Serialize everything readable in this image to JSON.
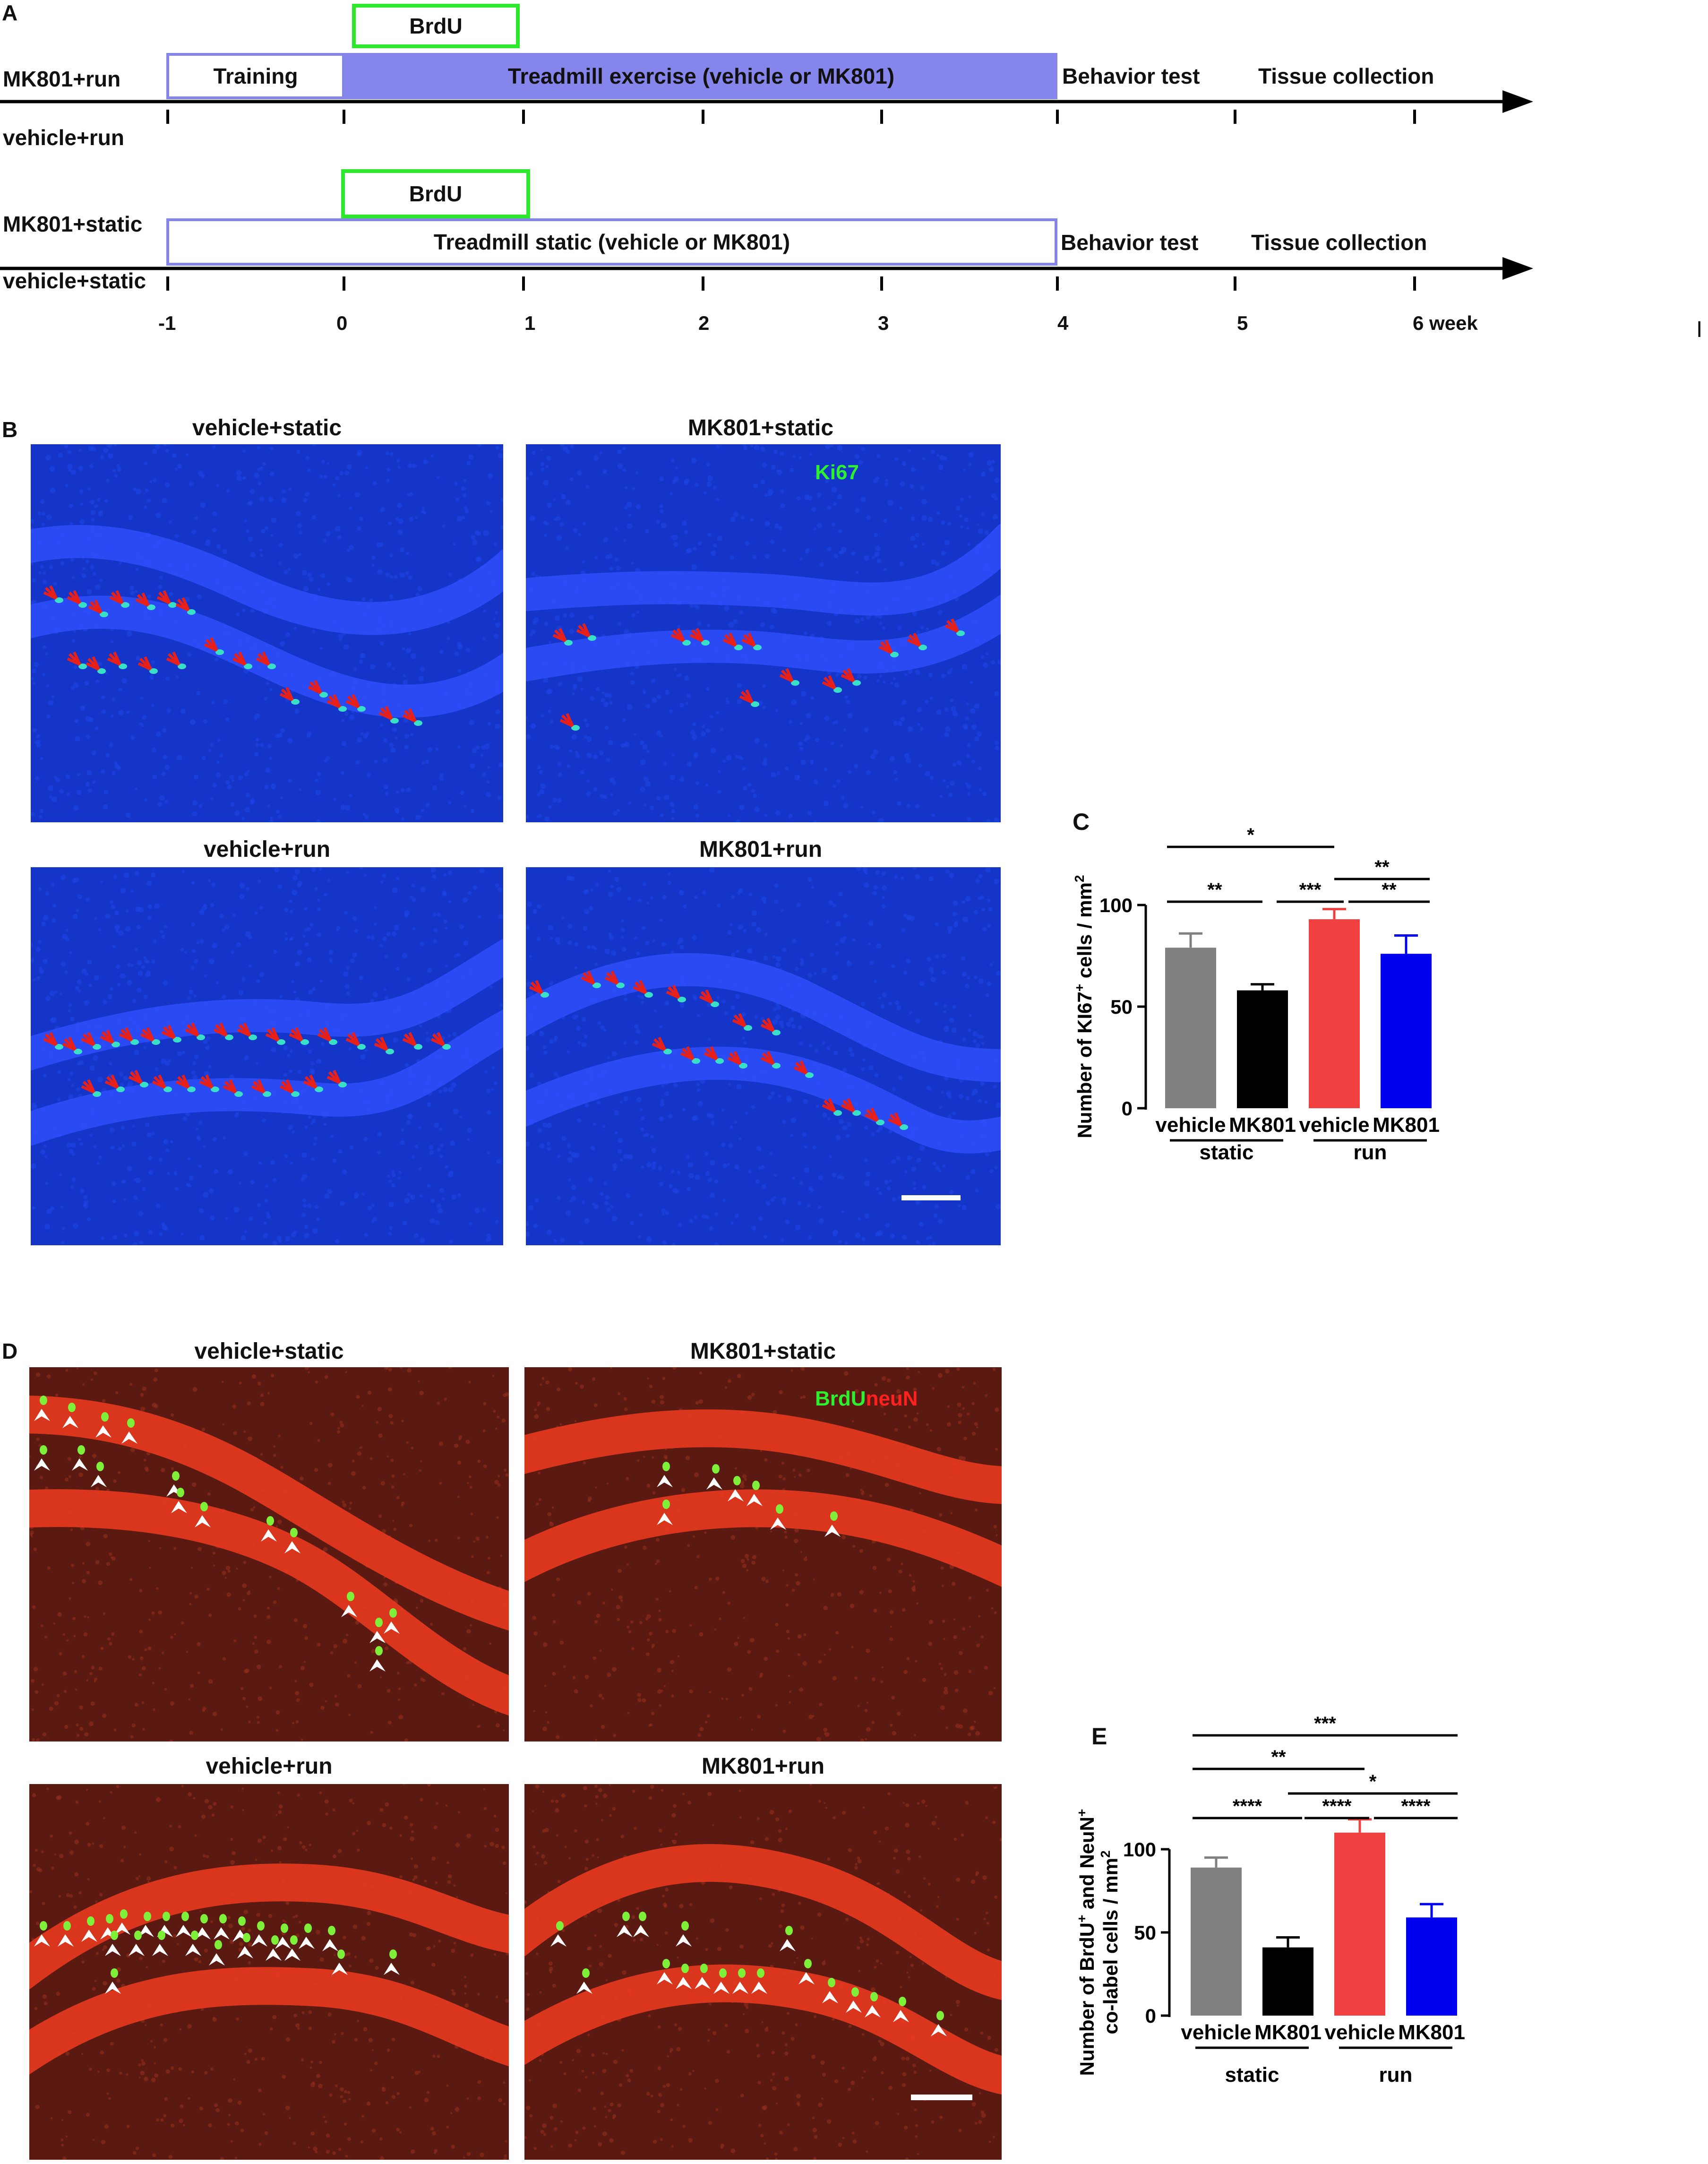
{
  "panel_labels": {
    "A": "A",
    "B": "B",
    "C": "C",
    "D": "D",
    "E": "E"
  },
  "stray_mark": "I",
  "timeline_top": {
    "groups": [
      "MK801+run",
      "vehicle+run"
    ],
    "training": "Training",
    "treadmill": "Treadmill exercise  (vehicle or MK801)",
    "brdu": "BrdU",
    "behavior": "Behavior test",
    "tissue": "Tissue collection"
  },
  "timeline_bottom": {
    "groups": [
      "MK801+static",
      "vehicle+static"
    ],
    "treadmill": "Treadmill static  (vehicle or MK801)",
    "brdu": "BrdU",
    "behavior": "Behavior test",
    "tissue": "Tissue collection"
  },
  "week_ticks": [
    "-1",
    "0",
    "1",
    "2",
    "3",
    "4",
    "5",
    "6 week"
  ],
  "panel_b": {
    "titles": [
      "vehicle+static",
      "MK801+static",
      "vehicle+run",
      "MK801+run"
    ],
    "stain": "Ki67",
    "colors": {
      "bg": "#1535c8",
      "cell": "#39e0c8",
      "arrow": "#e8201a"
    }
  },
  "panel_d": {
    "titles": [
      "vehicle+static",
      "MK801+static",
      "vehicle+run",
      "MK801+run"
    ],
    "stain_brdu": "BrdU",
    "stain_neun": "neuN",
    "colors": {
      "bg": "#5a1a12",
      "layer": "#e83a20",
      "cell": "#7ef03a",
      "arrow": "#ffffff"
    }
  },
  "chart_data": [
    {
      "type": "bar",
      "panel": "C",
      "categories": [
        "vehicle",
        "MK801",
        "vehicle",
        "MK801"
      ],
      "groups": [
        "static",
        "run"
      ],
      "values": [
        79,
        58,
        93,
        76
      ],
      "errors": [
        7,
        3,
        5,
        9
      ],
      "colors": [
        "#808080",
        "#000000",
        "#f04040",
        "#0000f0"
      ],
      "ylabel": "Number of KI67+ cells / mm2",
      "ylabel_parts": [
        "Number of KI67",
        "+",
        " cells / mm",
        "2"
      ],
      "yticks": [
        0,
        50,
        100
      ],
      "ylim": [
        0,
        100
      ],
      "significance": [
        {
          "from": 0,
          "to": 2,
          "label": "*"
        },
        {
          "from": 2,
          "to": 3,
          "label": "**",
          "level": "upper"
        },
        {
          "from": 0,
          "to": 1,
          "label": "**"
        },
        {
          "from": 1,
          "to": 2,
          "label": "***"
        },
        {
          "from": 2,
          "to": 3,
          "label": "**"
        }
      ]
    },
    {
      "type": "bar",
      "panel": "E",
      "categories": [
        "vehicle",
        "MK801",
        "vehicle",
        "MK801"
      ],
      "groups": [
        "static",
        "run"
      ],
      "values": [
        89,
        41,
        110,
        59
      ],
      "errors": [
        6,
        6,
        8,
        8
      ],
      "colors": [
        "#808080",
        "#000000",
        "#f04040",
        "#0000f0"
      ],
      "ylabel_line1_parts": [
        "Number of BrdU",
        "+",
        " and NeuN",
        "+"
      ],
      "ylabel_line2_parts": [
        "co-label cells / mm",
        "2"
      ],
      "yticks": [
        0,
        50,
        100
      ],
      "ylim": [
        0,
        100
      ],
      "significance": [
        {
          "from": 0,
          "to": 3,
          "label": "***"
        },
        {
          "from": 0,
          "to": 2,
          "label": "**"
        },
        {
          "from": 1,
          "to": 3,
          "label": "*"
        },
        {
          "from": 0,
          "to": 1,
          "label": "****"
        },
        {
          "from": 1,
          "to": 2,
          "label": "****"
        },
        {
          "from": 2,
          "to": 3,
          "label": "****"
        }
      ]
    }
  ]
}
